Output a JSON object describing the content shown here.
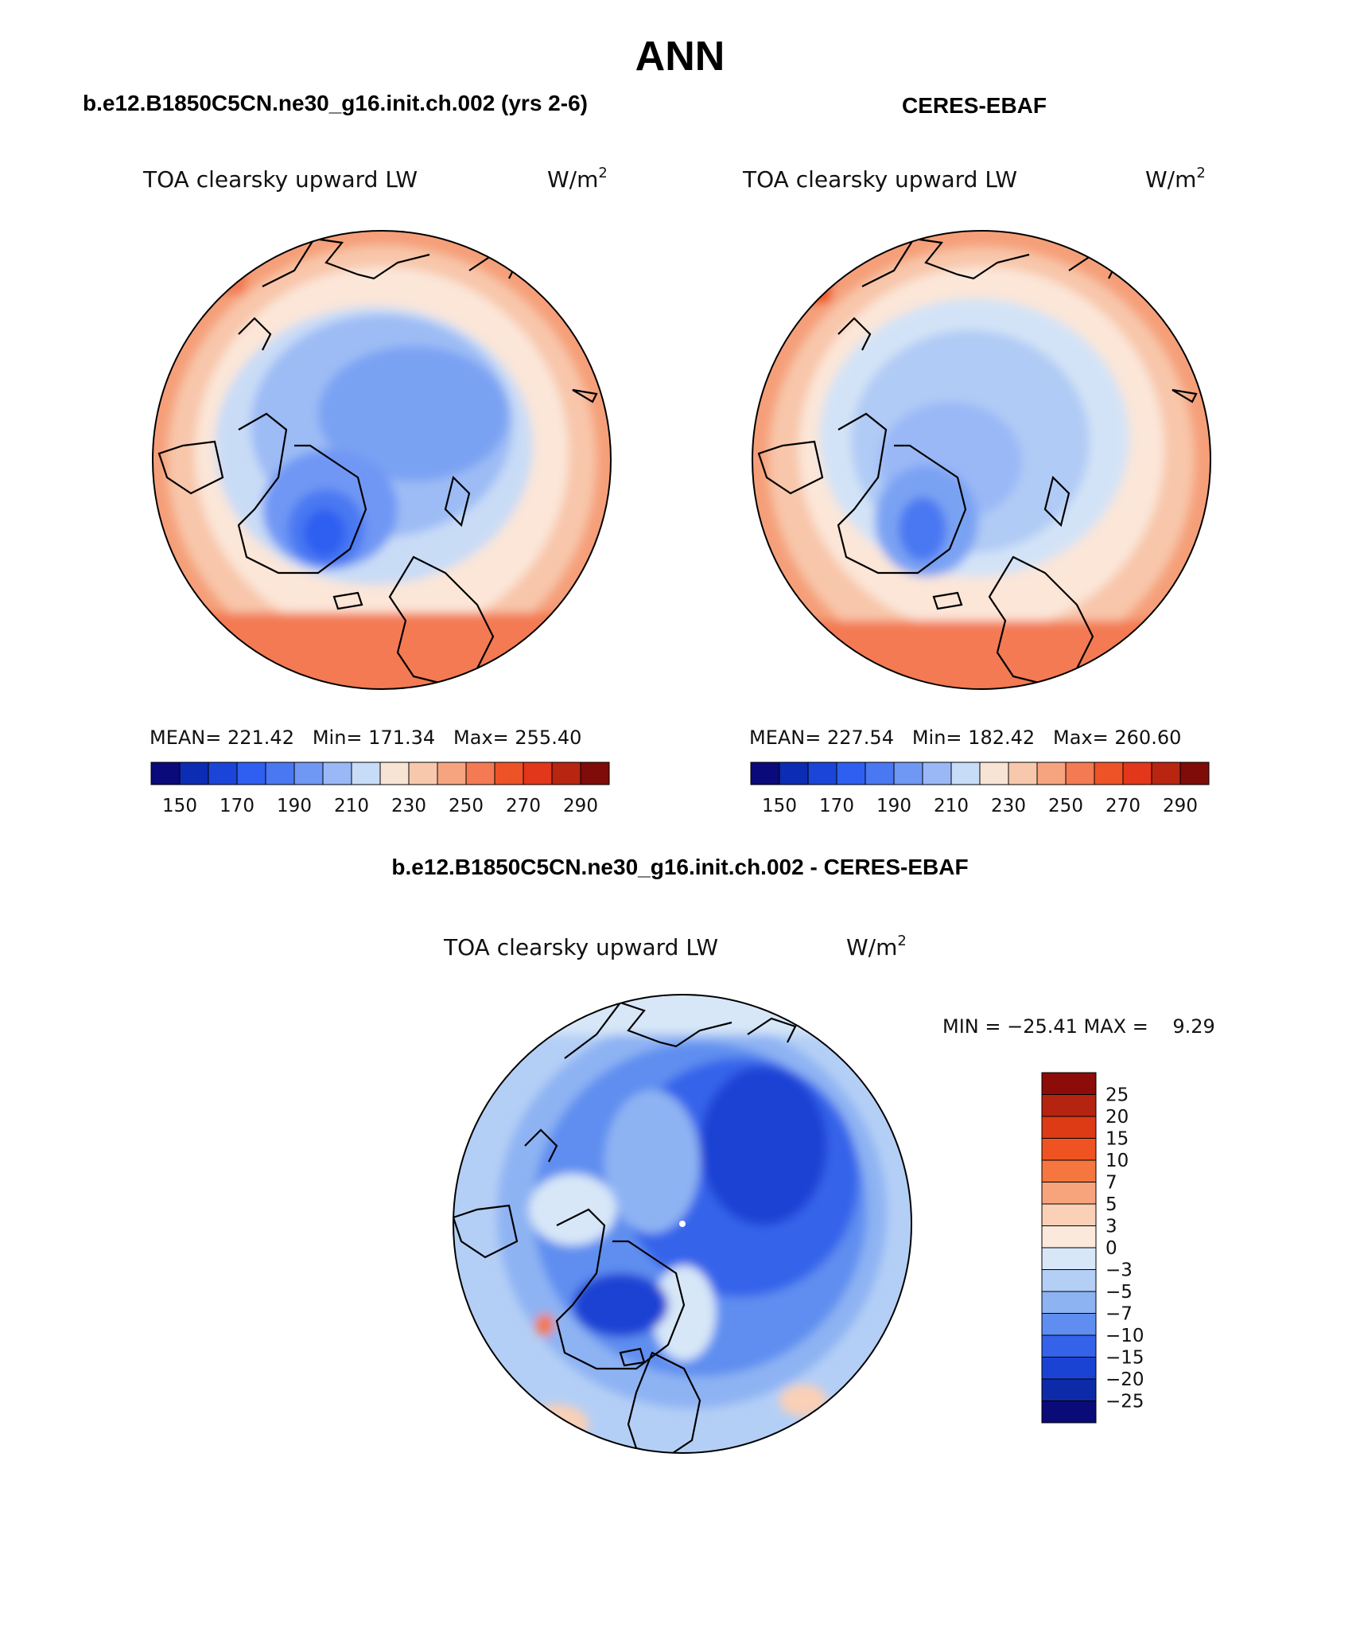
{
  "page": {
    "title": "ANN",
    "left_title": "b.e12.B1850C5CN.ne30_g16.init.ch.002 (yrs 2-6)",
    "right_title": "CERES-EBAF",
    "diff_title": "b.e12.B1850C5CN.ne30_g16.init.ch.002 - CERES-EBAF"
  },
  "panels": {
    "model": {
      "variable": "TOA clearsky upward LW",
      "units": "W/m",
      "units_sup": "2",
      "stats": "MEAN= 221.42   Min= 171.34   Max= 255.40"
    },
    "obs": {
      "variable": "TOA clearsky upward LW",
      "units": "W/m",
      "units_sup": "2",
      "stats": "MEAN= 227.54   Min= 182.42   Max= 260.60"
    },
    "diff": {
      "variable": "TOA clearsky upward LW",
      "units": "W/m",
      "units_sup": "2",
      "stats": "MIN = −25.41 MAX =    9.29"
    }
  },
  "colorbars": {
    "abs": {
      "labels": [
        "150",
        "170",
        "190",
        "210",
        "230",
        "250",
        "270",
        "290"
      ],
      "colors": [
        "#0a0a7a",
        "#0c2cb4",
        "#1a45d8",
        "#2f5ff0",
        "#4a78f2",
        "#6f97f4",
        "#9ab8f6",
        "#c7dcf7",
        "#f7e4d4",
        "#f8c8ad",
        "#f6a47f",
        "#f37a52",
        "#ee5227",
        "#e2371a",
        "#b82511",
        "#7f0c08"
      ]
    },
    "diff": {
      "labels": [
        "25",
        "20",
        "15",
        "10",
        "7",
        "5",
        "3",
        "0",
        "−3",
        "−5",
        "−7",
        "−10",
        "−15",
        "−20",
        "−25"
      ],
      "colors": [
        "#8b0c08",
        "#b52410",
        "#dc3b16",
        "#f05322",
        "#f5763f",
        "#f7a37c",
        "#fad0b6",
        "#fbe9dc",
        "#d7e7f8",
        "#b4cff6",
        "#8eb3f3",
        "#5f8ef0",
        "#3463ea",
        "#1a43d4",
        "#0d2ba8",
        "#0a0a78"
      ]
    }
  }
}
